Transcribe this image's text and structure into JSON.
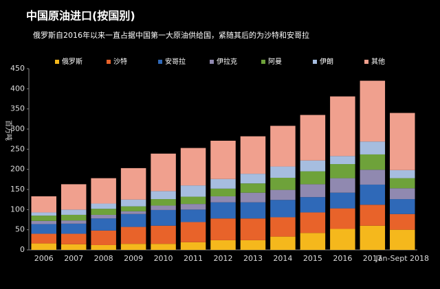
{
  "chart_data": {
    "type": "stacked_bar",
    "title": "中国原油进口(按国别)",
    "subtitle": "俄罗斯自2016年以来一直占据中国第一大原油供给国，紧随其后的为沙特和安哥拉",
    "y_label": "百万吨",
    "categories": [
      "2006",
      "2007",
      "2008",
      "2009",
      "2010",
      "2011",
      "2012",
      "2013",
      "2014",
      "2015",
      "2016",
      "2017",
      "Jan-Sept 2018"
    ],
    "series": [
      {
        "name": "俄罗斯",
        "color": "#f5b81c",
        "values": [
          16,
          14,
          12,
          15,
          15,
          19,
          24,
          24,
          33,
          42,
          52,
          60,
          50
        ]
      },
      {
        "name": "沙特",
        "color": "#e8632a",
        "values": [
          24,
          26,
          36,
          42,
          45,
          50,
          54,
          54,
          48,
          51,
          51,
          52,
          39
        ]
      },
      {
        "name": "安哥拉",
        "color": "#2f69b8",
        "values": [
          24,
          25,
          30,
          32,
          39,
          31,
          40,
          40,
          43,
          38,
          39,
          50,
          37
        ]
      },
      {
        "name": "伊拉克",
        "color": "#9089b0",
        "values": [
          8,
          8,
          9,
          7,
          11,
          14,
          15,
          24,
          25,
          32,
          36,
          37,
          27
        ]
      },
      {
        "name": "阿曼",
        "color": "#6ea23a",
        "values": [
          13,
          14,
          15,
          12,
          16,
          18,
          19,
          23,
          30,
          32,
          35,
          38,
          25
        ]
      },
      {
        "name": "伊朗",
        "color": "#a6bddf",
        "values": [
          8,
          13,
          13,
          17,
          20,
          28,
          24,
          24,
          28,
          27,
          20,
          32,
          20
        ]
      },
      {
        "name": "其他",
        "color": "#f0a08e",
        "values": [
          40,
          63,
          63,
          78,
          93,
          93,
          95,
          93,
          101,
          113,
          148,
          151,
          142
        ]
      }
    ],
    "ylim": [
      0,
      450
    ],
    "yticks": [
      0,
      50,
      100,
      150,
      200,
      250,
      300,
      350,
      400,
      450
    ],
    "grid": false
  }
}
